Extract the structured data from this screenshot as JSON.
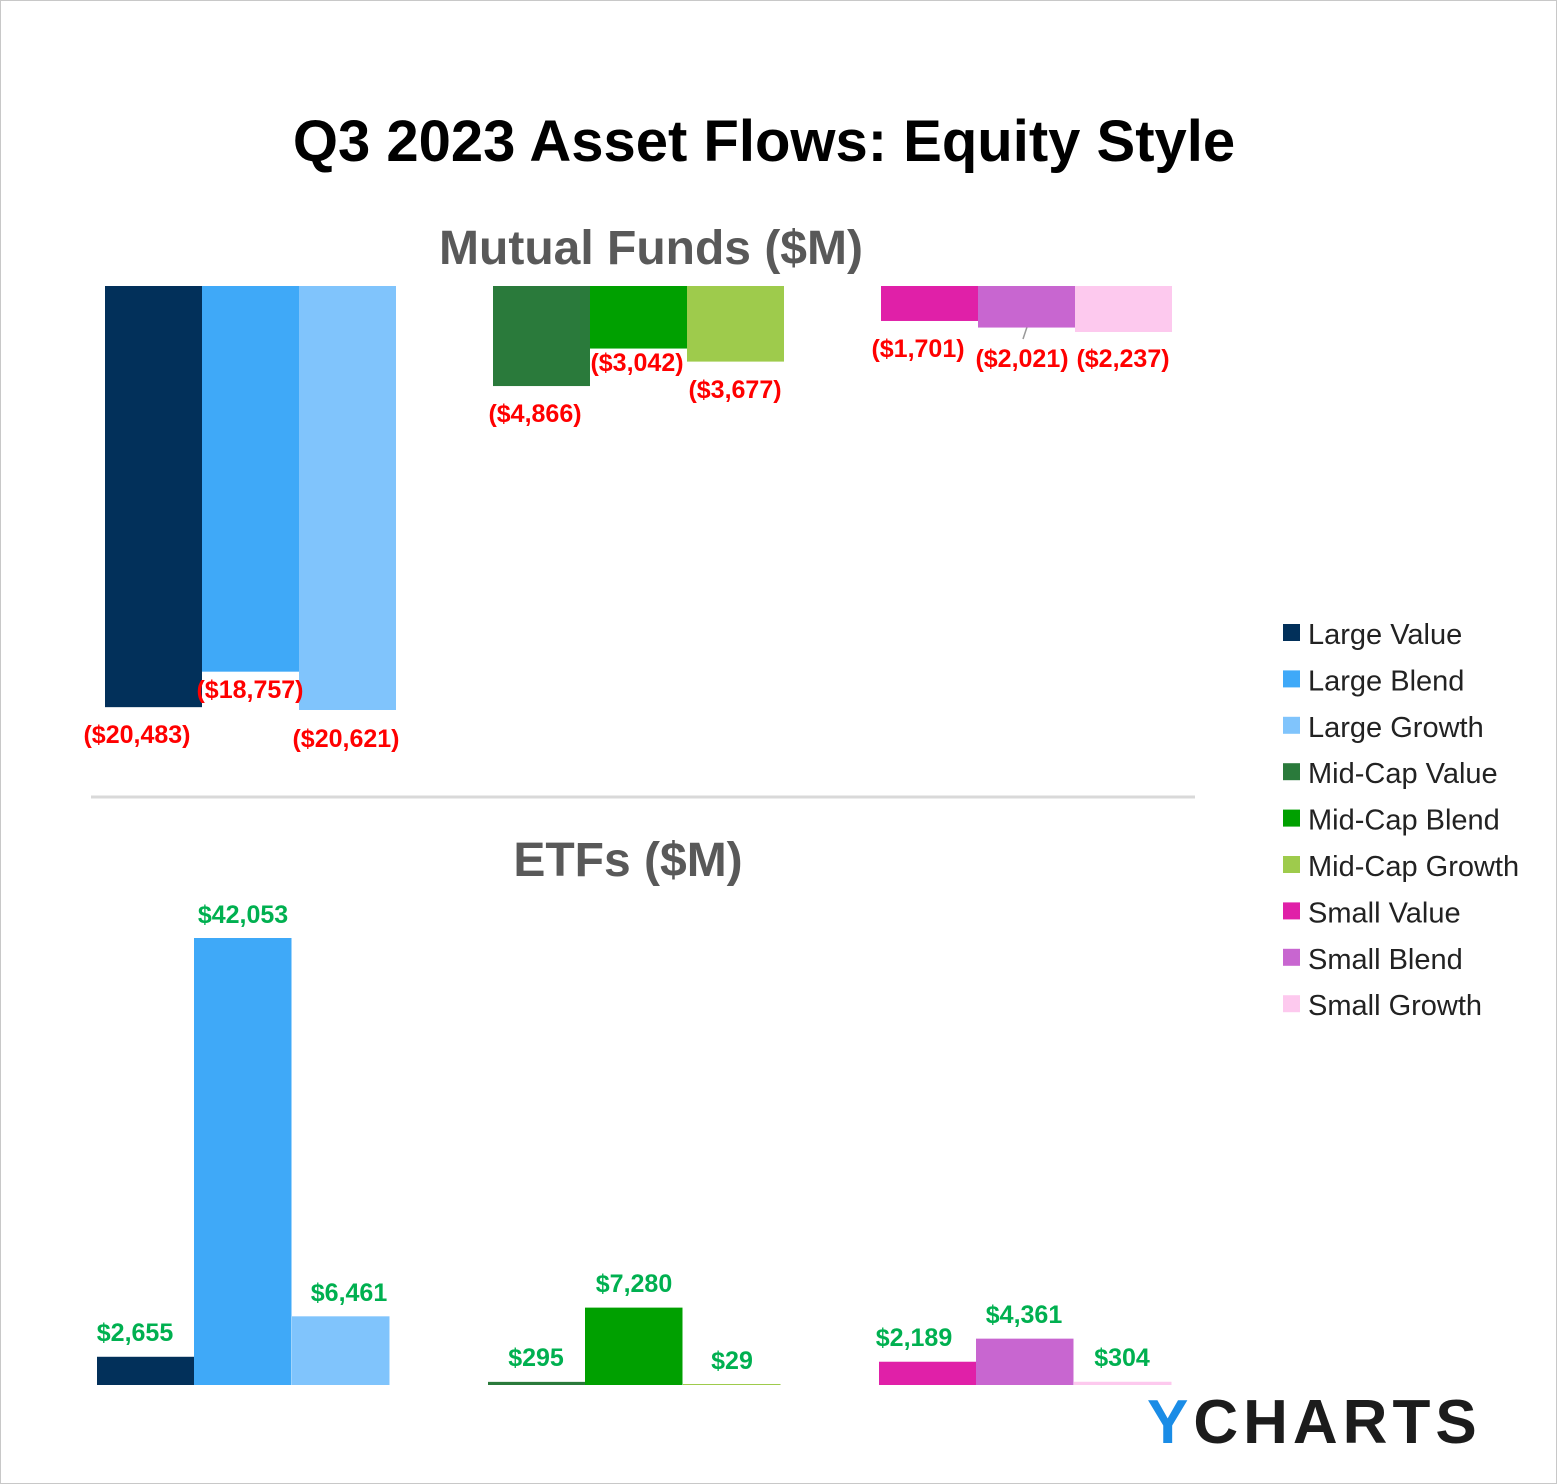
{
  "chart_data": [
    {
      "type": "bar",
      "title": "Q3 2023 Asset Flows: Equity Style",
      "subtitle": "Mutual Funds ($M)",
      "categories": [
        "Large Value",
        "Large Blend",
        "Large Growth",
        "Mid-Cap Value",
        "Mid-Cap Blend",
        "Mid-Cap Growth",
        "Small Value",
        "Small Blend",
        "Small Growth"
      ],
      "values": [
        -20483,
        -18757,
        -20621,
        -4866,
        -3042,
        -3677,
        -1701,
        -2021,
        -2237
      ],
      "labels": [
        "($20,483)",
        "($18,757)",
        "($20,621)",
        "($4,866)",
        "($3,042)",
        "($3,677)",
        "($1,701)",
        "($2,021)",
        "($2,237)"
      ],
      "label_color": "#ff0000"
    },
    {
      "type": "bar",
      "subtitle": "ETFs ($M)",
      "categories": [
        "Large Value",
        "Large Blend",
        "Large Growth",
        "Mid-Cap Value",
        "Mid-Cap Blend",
        "Mid-Cap Growth",
        "Small Value",
        "Small Blend",
        "Small Growth"
      ],
      "values": [
        2655,
        42053,
        6461,
        295,
        7280,
        29,
        2189,
        4361,
        304
      ],
      "labels": [
        "$2,655",
        "$42,053",
        "$6,461",
        "$295",
        "$7,280",
        "$29",
        "$2,189",
        "$4,361",
        "$304"
      ],
      "label_color": "#00b050"
    }
  ],
  "legend": {
    "position": "right",
    "items": [
      "Large Value",
      "Large Blend",
      "Large Growth",
      "Mid-Cap Value",
      "Mid-Cap Blend",
      "Mid-Cap Growth",
      "Small Value",
      "Small Blend",
      "Small Growth"
    ]
  },
  "colors": [
    "#02305a",
    "#3fa9f8",
    "#80c4fc",
    "#2a7a3b",
    "#00a000",
    "#9ecb4c",
    "#e020a8",
    "#c866d0",
    "#fdc9ee"
  ],
  "logo": {
    "y": "Y",
    "rest": "CHARTS",
    "y_color": "#1a8ce6",
    "text_color": "#1c1c1c"
  }
}
